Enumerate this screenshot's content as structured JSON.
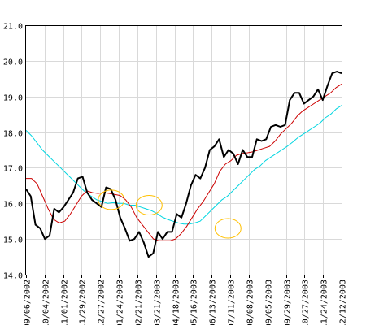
{
  "chart_data": {
    "type": "line",
    "title": "",
    "xlabel": "",
    "ylabel": "",
    "ylim": [
      14.0,
      21.0
    ],
    "yticks": [
      "14.0",
      "15.0",
      "16.0",
      "17.0",
      "18.0",
      "19.0",
      "20.0",
      "21.0"
    ],
    "xticks": [
      "09/06/2002",
      "10/04/2002",
      "11/01/2002",
      "11/29/2002",
      "12/27/2002",
      "01/24/2003",
      "02/21/2003",
      "03/21/2003",
      "04/18/2003",
      "05/16/2003",
      "06/13/2003",
      "07/11/2003",
      "08/08/2003",
      "09/05/2003",
      "09/29/2003",
      "10/27/2003",
      "11/24/2003",
      "12/12/2003"
    ],
    "grid": true,
    "legend": "none",
    "colors": {
      "price": "#000000",
      "short_ma": "#cc0000",
      "long_ma": "#00d5e0",
      "highlight": "#ffc000",
      "grid": "#d9d9d9"
    },
    "series": [
      {
        "key": "price",
        "values": [
          16.4,
          16.2,
          15.4,
          15.3,
          15.0,
          15.1,
          15.85,
          15.75,
          15.9,
          16.1,
          16.3,
          16.7,
          16.75,
          16.3,
          16.1,
          16.0,
          15.9,
          16.45,
          16.4,
          16.1,
          15.6,
          15.3,
          14.95,
          15.0,
          15.2,
          14.9,
          14.5,
          14.6,
          15.2,
          15.0,
          15.2,
          15.2,
          15.7,
          15.6,
          16.0,
          16.5,
          16.8,
          16.7,
          17.0,
          17.5,
          17.6,
          17.8,
          17.3,
          17.5,
          17.4,
          17.1,
          17.5,
          17.3,
          17.3,
          17.8,
          17.75,
          17.8,
          18.15,
          18.2,
          18.15,
          18.2,
          18.9,
          19.1,
          19.1,
          18.8,
          18.9,
          19.0,
          19.2,
          18.9,
          19.3,
          19.65,
          19.7,
          19.65
        ]
      },
      {
        "key": "short_ma",
        "values": [
          16.7,
          16.7,
          16.55,
          16.2,
          15.85,
          15.55,
          15.45,
          15.5,
          15.7,
          15.95,
          16.2,
          16.35,
          16.3,
          16.28,
          16.3,
          16.28,
          16.25,
          16.22,
          16.1,
          15.9,
          15.6,
          15.4,
          15.2,
          15.0,
          14.95,
          14.95,
          14.95,
          15.0,
          15.15,
          15.35,
          15.6,
          15.85,
          16.05,
          16.3,
          16.55,
          16.9,
          17.1,
          17.2,
          17.35,
          17.4,
          17.42,
          17.45,
          17.5,
          17.55,
          17.6,
          17.75,
          17.95,
          18.1,
          18.25,
          18.45,
          18.6,
          18.7,
          18.8,
          18.9,
          19.0,
          19.1,
          19.25,
          19.35
        ]
      },
      {
        "key": "long_ma",
        "values": [
          18.05,
          17.9,
          17.7,
          17.5,
          17.35,
          17.2,
          17.05,
          16.9,
          16.75,
          16.6,
          16.45,
          16.3,
          16.2,
          16.1,
          16.05,
          16.0,
          16.02,
          16.0,
          16.0,
          15.95,
          15.95,
          15.9,
          15.85,
          15.8,
          15.72,
          15.62,
          15.55,
          15.5,
          15.45,
          15.42,
          15.42,
          15.45,
          15.5,
          15.65,
          15.8,
          15.95,
          16.1,
          16.2,
          16.35,
          16.5,
          16.65,
          16.8,
          16.95,
          17.05,
          17.2,
          17.3,
          17.4,
          17.5,
          17.6,
          17.72,
          17.85,
          17.95,
          18.05,
          18.15,
          18.25,
          18.4,
          18.5,
          18.65,
          18.75
        ]
      }
    ],
    "highlights": [
      {
        "center_fraction": 0.27,
        "value": 16.1
      },
      {
        "center_fraction": 0.39,
        "value": 15.95
      },
      {
        "center_fraction": 0.64,
        "value": 15.3
      }
    ]
  }
}
